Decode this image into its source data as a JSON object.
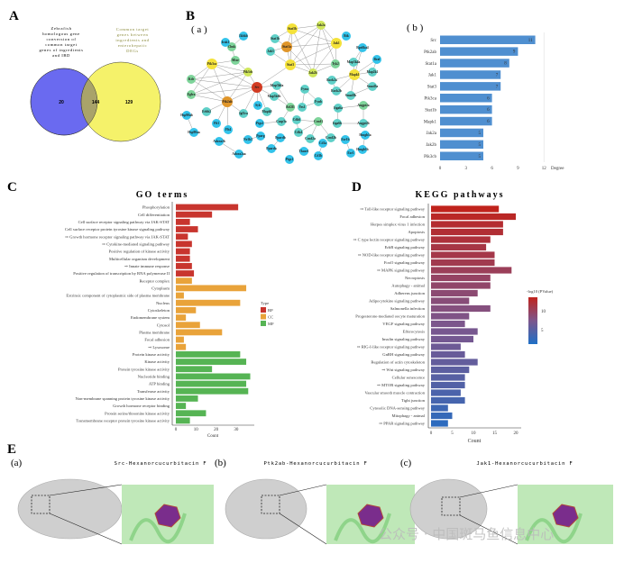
{
  "panels": {
    "A": "A",
    "B": "B",
    "C": "C",
    "D": "D",
    "E": "E",
    "Ba": "( a )",
    "Bb": "( b )",
    "Ea": "(a)",
    "Eb": "(b)",
    "Ec": "(c)"
  },
  "venn": {
    "left_title": [
      "Zebrafish",
      "homologous gene",
      "conversion of",
      "common target",
      "genes of ingredients",
      "and IBD"
    ],
    "right_title": [
      "Common target",
      "genes between",
      "ingredients and",
      "enterohepatic",
      "DEGs"
    ],
    "left_only": "20",
    "overlap": "144",
    "right_only": "129",
    "colors": {
      "left": "#6a6af0",
      "right": "#f5f26a",
      "overlap": "#a9a36a"
    }
  },
  "network": {
    "nodes": [
      {
        "label": "Src",
        "kind": "red"
      },
      {
        "label": "Ptk2ab",
        "kind": "orange"
      },
      {
        "label": "Stat1a",
        "kind": "orange"
      },
      {
        "label": "Stat5b",
        "kind": "yellow"
      },
      {
        "label": "Jak2a",
        "kind": "lime"
      },
      {
        "label": "Jak1",
        "kind": "yellow"
      },
      {
        "label": "Stat3",
        "kind": "yellow"
      },
      {
        "label": "Jak2b",
        "kind": "lime"
      },
      {
        "label": "Tyk2",
        "kind": "green"
      },
      {
        "label": "Jak3",
        "kind": "teal"
      },
      {
        "label": "Stat1b",
        "kind": "teal"
      },
      {
        "label": "Pik3ca",
        "kind": "yellow"
      },
      {
        "label": "Pik3cb",
        "kind": "lime"
      },
      {
        "label": "Mtor",
        "kind": "green"
      },
      {
        "label": "Chuk",
        "kind": "green"
      },
      {
        "label": "Ikbkb",
        "kind": "cyan"
      },
      {
        "label": "Irak1",
        "kind": "cyan"
      },
      {
        "label": "Kdr",
        "kind": "green"
      },
      {
        "label": "Egfra",
        "kind": "green"
      },
      {
        "label": "Erbb2",
        "kind": "teal"
      },
      {
        "label": "Igf1ra",
        "kind": "teal"
      },
      {
        "label": "Flt1",
        "kind": "cyan"
      },
      {
        "label": "Flt4",
        "kind": "cyan"
      },
      {
        "label": "Syk",
        "kind": "cyan"
      },
      {
        "label": "Mapk9",
        "kind": "teal"
      },
      {
        "label": "Map3k6a",
        "kind": "teal"
      },
      {
        "label": "Map3k6b",
        "kind": "teal"
      },
      {
        "label": "Bcl2l1",
        "kind": "green"
      },
      {
        "label": "Casp3a",
        "kind": "teal"
      },
      {
        "label": "Mapk1",
        "kind": "yellow"
      },
      {
        "label": "Map3k4a",
        "kind": "teal"
      },
      {
        "label": "Rps6ka4",
        "kind": "cyan"
      },
      {
        "label": "Braf",
        "kind": "cyan"
      },
      {
        "label": "Map2k1",
        "kind": "teal"
      },
      {
        "label": "Rock2a",
        "kind": "teal"
      },
      {
        "label": "Rock2b",
        "kind": "teal"
      },
      {
        "label": "Smad3a",
        "kind": "teal"
      },
      {
        "label": "Smad3b",
        "kind": "teal"
      },
      {
        "label": "Btk",
        "kind": "cyan"
      },
      {
        "label": "Fyna",
        "kind": "teal"
      },
      {
        "label": "Fynb",
        "kind": "teal"
      },
      {
        "label": "Yes1",
        "kind": "teal"
      },
      {
        "label": "Ccnd1",
        "kind": "green"
      },
      {
        "label": "Cdk6",
        "kind": "teal"
      },
      {
        "label": "Cdk4",
        "kind": "teal"
      },
      {
        "label": "Ccnd2a",
        "kind": "teal"
      },
      {
        "label": "Ccnd2b",
        "kind": "teal"
      },
      {
        "label": "Itga6a",
        "kind": "teal"
      },
      {
        "label": "Angpt2a",
        "kind": "green"
      },
      {
        "label": "Itga6b",
        "kind": "teal"
      },
      {
        "label": "Angpt2b",
        "kind": "teal"
      },
      {
        "label": "Hmgb1a",
        "kind": "cyan"
      },
      {
        "label": "Hmgb1b",
        "kind": "cyan"
      },
      {
        "label": "Esr1b",
        "kind": "cyan"
      },
      {
        "label": "Esr1",
        "kind": "cyan"
      },
      {
        "label": "Cd1a",
        "kind": "cyan"
      },
      {
        "label": "Cd1b",
        "kind": "cyan"
      },
      {
        "label": "Tkase1",
        "kind": "cyan"
      },
      {
        "label": "Ptgs1",
        "kind": "cyan"
      },
      {
        "label": "Ppardb",
        "kind": "cyan"
      },
      {
        "label": "Pparda",
        "kind": "cyan"
      },
      {
        "label": "Pparg",
        "kind": "cyan"
      },
      {
        "label": "Nr1h3",
        "kind": "cyan"
      },
      {
        "label": "Adora2b",
        "kind": "cyan"
      },
      {
        "label": "Adora2aa",
        "kind": "cyan"
      },
      {
        "label": "Hsp90ab",
        "kind": "cyan"
      },
      {
        "label": "Hsp90aa",
        "kind": "cyan"
      },
      {
        "label": "Ptgs2",
        "kind": "cyan"
      }
    ],
    "edges": [
      [
        0,
        1
      ],
      [
        0,
        11
      ],
      [
        0,
        12
      ],
      [
        0,
        6
      ],
      [
        0,
        17
      ],
      [
        0,
        18
      ],
      [
        0,
        23
      ],
      [
        0,
        24
      ],
      [
        0,
        20
      ],
      [
        0,
        25
      ],
      [
        0,
        26
      ],
      [
        1,
        11
      ],
      [
        1,
        12
      ],
      [
        1,
        17
      ],
      [
        1,
        18
      ],
      [
        1,
        19
      ],
      [
        1,
        20
      ],
      [
        1,
        21
      ],
      [
        1,
        22
      ],
      [
        11,
        12
      ],
      [
        11,
        13
      ],
      [
        11,
        17
      ],
      [
        11,
        18
      ],
      [
        12,
        13
      ],
      [
        12,
        17
      ],
      [
        12,
        18
      ],
      [
        13,
        14
      ],
      [
        14,
        15
      ],
      [
        14,
        16
      ],
      [
        2,
        3
      ],
      [
        2,
        4
      ],
      [
        2,
        5
      ],
      [
        2,
        6
      ],
      [
        2,
        7
      ],
      [
        2,
        9
      ],
      [
        2,
        10
      ],
      [
        3,
        4
      ],
      [
        3,
        5
      ],
      [
        3,
        6
      ],
      [
        3,
        7
      ],
      [
        4,
        5
      ],
      [
        4,
        6
      ],
      [
        4,
        7
      ],
      [
        5,
        6
      ],
      [
        5,
        7
      ],
      [
        5,
        8
      ],
      [
        6,
        7
      ],
      [
        6,
        8
      ],
      [
        6,
        9
      ],
      [
        7,
        8
      ],
      [
        3,
        10
      ],
      [
        4,
        8
      ],
      [
        29,
        30
      ],
      [
        29,
        31
      ],
      [
        29,
        32
      ],
      [
        29,
        33
      ],
      [
        29,
        34
      ],
      [
        29,
        35
      ],
      [
        29,
        36
      ],
      [
        29,
        37
      ],
      [
        30,
        31
      ],
      [
        32,
        33
      ],
      [
        34,
        35
      ],
      [
        36,
        37
      ],
      [
        39,
        40
      ],
      [
        40,
        41
      ],
      [
        39,
        41
      ],
      [
        42,
        43
      ],
      [
        42,
        45
      ],
      [
        42,
        46
      ],
      [
        43,
        44
      ],
      [
        42,
        44
      ],
      [
        47,
        48
      ],
      [
        48,
        50
      ],
      [
        49,
        50
      ],
      [
        47,
        49
      ],
      [
        51,
        52
      ],
      [
        53,
        54
      ],
      [
        55,
        56
      ],
      [
        59,
        60
      ],
      [
        61,
        62
      ],
      [
        63,
        64
      ],
      [
        65,
        66
      ],
      [
        27,
        25
      ],
      [
        27,
        26
      ],
      [
        27,
        28
      ],
      [
        28,
        67
      ]
    ],
    "colors": {
      "red": "#d13b22",
      "orange": "#e0962a",
      "yellow": "#f4e23a",
      "lime": "#cfe65a",
      "green": "#7ed49a",
      "teal": "#5fd0c8",
      "cyan": "#33c3ea"
    }
  },
  "chart_data": [
    {
      "type": "bar",
      "id": "degree",
      "orientation": "horizontal",
      "categories": [
        "Src",
        "Ptk2ab",
        "Stat1a",
        "Jak1",
        "Stat3",
        "Pik3ca",
        "Stat1b",
        "Mapk1",
        "Jak2a",
        "Jak2b",
        "Pik3cb"
      ],
      "values": [
        11,
        9,
        8,
        7,
        7,
        6,
        6,
        6,
        5,
        5,
        5
      ],
      "xlabel": "Degree",
      "xticks": [
        "0",
        "3",
        "6",
        "9",
        "12"
      ],
      "xlim": [
        0,
        12
      ],
      "color": "#4f8fd0"
    },
    {
      "type": "bar",
      "id": "go",
      "orientation": "horizontal",
      "title": "GO terms",
      "xlabel": "Count",
      "xticks": [
        "0",
        "10",
        "20",
        "30"
      ],
      "xlim": [
        0,
        38
      ],
      "legend": {
        "title": "Type",
        "entries": [
          "BP",
          "CC",
          "MF"
        ],
        "colors": [
          "#c8352e",
          "#e9a33a",
          "#56b454"
        ],
        "placement": "right"
      },
      "categories": [
        "Phosphorylation",
        "Cell differentiation",
        "Cell surface receptor signaling pathway via JAK-STAT",
        "Cell surface receptor protein tyrosine kinase signaling pathway",
        "⇨ Growth hormone receptor signaling pathway via JAK-STAT",
        "⇨ Cytokine-mediated signaling pathway",
        "Positive regulation of kinase activity",
        "Multicellular organism development",
        "⇨ Innate immune response",
        "Positive regulation of transcription by RNA polymerase II",
        "Receptor complex",
        "Cytoplasm",
        "Extrinsic component of cytoplasmic side of plasma membrane",
        "Nucleus",
        "Cytoskeleton",
        "Endomembrane system",
        "Cytosol",
        "Plasma membrane",
        "Focal adhesion",
        "⇨ Lysosome",
        "Protein kinase activity",
        "Kinase activity",
        "Protein tyrosine kinase activity",
        "Nucleotide binding",
        "ATP binding",
        "Transferase activity",
        "Non-membrane spanning protein tyrosine kinase activity",
        "Growth hormone receptor binding",
        "Protein serine/threonine kinase activity",
        "Transmembrane receptor protein tyrosine kinase activity"
      ],
      "values": [
        31,
        18,
        7,
        11,
        6,
        8,
        7,
        7,
        8,
        9,
        8,
        35,
        4,
        32,
        10,
        5,
        12,
        23,
        4,
        5,
        32,
        35,
        18,
        37,
        35,
        36,
        11,
        5,
        15,
        7
      ],
      "types": [
        "BP",
        "BP",
        "BP",
        "BP",
        "BP",
        "BP",
        "BP",
        "BP",
        "BP",
        "BP",
        "CC",
        "CC",
        "CC",
        "CC",
        "CC",
        "CC",
        "CC",
        "CC",
        "CC",
        "CC",
        "MF",
        "MF",
        "MF",
        "MF",
        "MF",
        "MF",
        "MF",
        "MF",
        "MF",
        "MF"
      ]
    },
    {
      "type": "bar",
      "id": "kegg",
      "orientation": "horizontal",
      "title": "KEGG pathways",
      "xlabel": "Count",
      "xticks": [
        "0",
        "5",
        "10",
        "15",
        "20"
      ],
      "xlim": [
        0,
        21
      ],
      "colorbar": {
        "title": "-log10 (PValue)",
        "ticks": [
          "10",
          "5"
        ],
        "range": [
          2,
          13
        ],
        "colors": [
          "#c0231c",
          "#1f6fc6"
        ]
      },
      "categories": [
        "⇨ Toll-like receptor signaling pathway",
        "Focal adhesion",
        "Herpes simplex virus 1 infection",
        "Apoptosis",
        "⇨ C type lectin receptor signaling pathway",
        "ErbB signaling pathway",
        "⇨ NOD-like receptor signaling pathway",
        "FoxO signaling pathway",
        "⇨ MAPK signaling pathway",
        "Necroptosis",
        "Autophagy - animal",
        "Adherens junction",
        "Adipocytokine signaling pathway",
        "Salmonella infection",
        "Progesterone-mediated oocyte maturation",
        "VEGF signaling pathway",
        "Efferocytosis",
        "Insulin signaling pathway",
        "⇨ RIG-I-like receptor signaling pathway",
        "GnRH signaling pathway",
        "Regulation of actin cytoskeleton",
        "⇨ Wnt signaling pathway",
        "Cellular senescence",
        "⇨ MTOR signaling pathway",
        "Vascular smooth muscle contraction",
        "Tight junction",
        "Cytosolic DNA-sensing pathway",
        "Mitophagy - animal",
        "⇨ PPAR signaling pathway"
      ],
      "values": [
        16,
        20,
        17,
        17,
        14,
        13,
        15,
        15,
        19,
        14,
        14,
        11,
        9,
        14,
        9,
        8,
        11,
        10,
        7,
        8,
        11,
        9,
        8,
        8,
        7,
        8,
        4,
        5,
        4
      ],
      "neg_log10_p": [
        13,
        12.5,
        12,
        11.8,
        11.5,
        11,
        10.8,
        10.5,
        10,
        9.5,
        9.2,
        8.8,
        8.5,
        8.2,
        7.8,
        7.5,
        7.2,
        7,
        6.6,
        6.3,
        6,
        5.6,
        5.3,
        5,
        4.6,
        4.3,
        3.8,
        3.3,
        2.8
      ]
    }
  ],
  "docking": [
    {
      "label": "(a)",
      "title": "Src-Hexanorcucurbitacin F"
    },
    {
      "label": "(b)",
      "title": "Ptk2ab-Hexanorcucurbitacin F"
    },
    {
      "label": "(c)",
      "title": "Jak1-Hexanorcucurbitacin F"
    }
  ],
  "watermark": "公众号 · 中国斑马鱼信息中心"
}
